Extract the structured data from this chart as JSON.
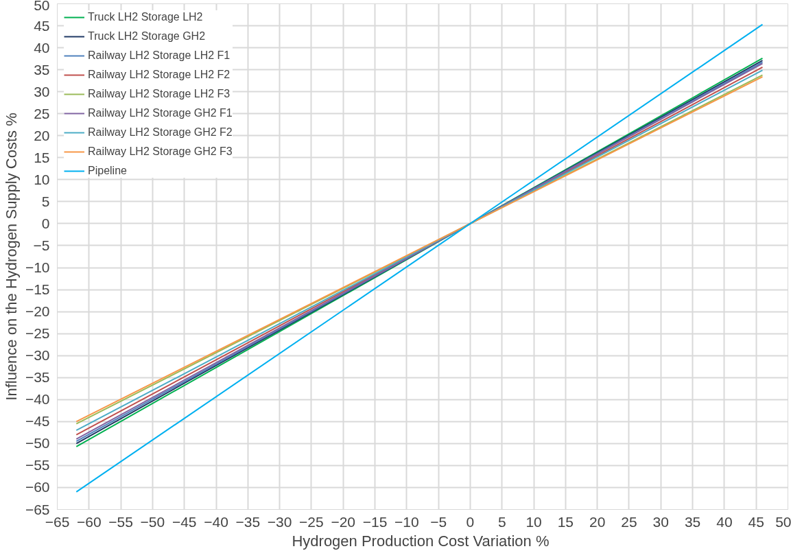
{
  "chart_data": {
    "type": "line",
    "xlabel": "Hydrogen Production  Cost Variation %",
    "ylabel": "Influence on the Hydrogen Supply Costs %",
    "x": [
      -62,
      0,
      46
    ],
    "series": [
      {
        "name": "Truck LH2 Storage LH2",
        "color": "#00b050",
        "values": [
          -50.7,
          0,
          37.6
        ]
      },
      {
        "name": "Truck LH2 Storage GH2",
        "color": "#1f3864",
        "values": [
          -50,
          0,
          37.1
        ]
      },
      {
        "name": "Railway LH2 Storage LH2 F1",
        "color": "#4f81bd",
        "values": [
          -49.5,
          0,
          36.7
        ]
      },
      {
        "name": "Railway LH2 Storage LH2 F2",
        "color": "#c0504d",
        "values": [
          -48,
          0,
          35.6
        ]
      },
      {
        "name": "Railway LH2 Storage LH2 F3",
        "color": "#9bbb59",
        "values": [
          -45.5,
          0,
          33.8
        ]
      },
      {
        "name": "Railway LH2 Storage GH2 F1",
        "color": "#8064a2",
        "values": [
          -49,
          0,
          36.4
        ]
      },
      {
        "name": "Railway LH2 Storage GH2 F2",
        "color": "#4bacc6",
        "values": [
          -47,
          0,
          34.9
        ]
      },
      {
        "name": "Railway LH2 Storage GH2 F3",
        "color": "#f79646",
        "values": [
          -45,
          0,
          33.4
        ]
      },
      {
        "name": "Pipeline",
        "color": "#00b0f0",
        "values": [
          -61,
          0,
          45.3
        ]
      }
    ],
    "xlim": [
      -65,
      50
    ],
    "ylim": [
      -65,
      50
    ],
    "xticks": [
      -65,
      -60,
      -55,
      -50,
      -45,
      -40,
      -35,
      -30,
      -25,
      -20,
      -15,
      -10,
      -5,
      0,
      5,
      10,
      15,
      20,
      25,
      30,
      35,
      40,
      45,
      50
    ],
    "yticks": [
      -65,
      -60,
      -55,
      -50,
      -45,
      -40,
      -35,
      -30,
      -25,
      -20,
      -15,
      -10,
      -5,
      0,
      5,
      10,
      15,
      20,
      25,
      30,
      35,
      40,
      45,
      50
    ],
    "grid": true,
    "legend": "top left",
    "marker": "none",
    "line_style": "solid"
  }
}
